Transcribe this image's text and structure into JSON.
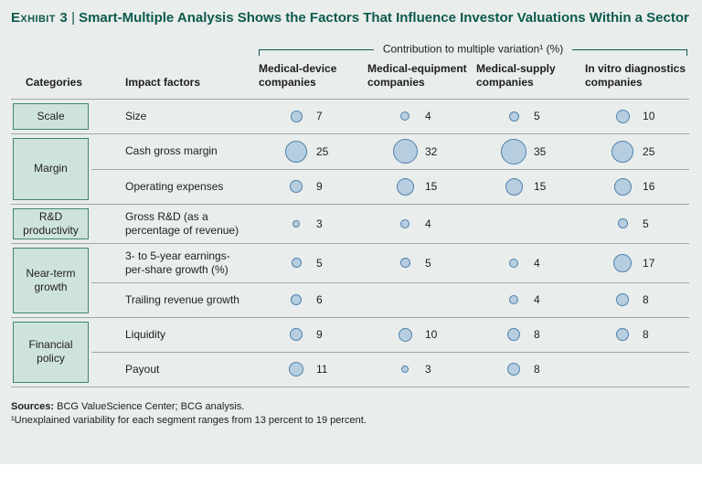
{
  "colors": {
    "background": "#e9edec",
    "title_green": "#0d5a4e",
    "category_fill": "#cfe3dd",
    "category_border": "#3f8375",
    "bubble_fill": "#b7cee1",
    "bubble_border": "#4f81ab",
    "line": "#9fa9a6"
  },
  "header": {
    "exhibit_label": "Exhibit 3",
    "divider": "|",
    "title_text": "Smart-Multiple Analysis Shows the Factors That Influence Investor Valuations Within a Sector"
  },
  "bracket": {
    "label": "Contribution to multiple variation¹ (%)"
  },
  "table": {
    "col_categories": "Categories",
    "col_impact_factors": "Impact factors",
    "company_columns": [
      "Medical-device companies",
      "Medical-equipment companies",
      "Medical-supply companies",
      "In vitro diagnostics companies"
    ]
  },
  "chart_data": {
    "type": "table",
    "title": "Exhibit 3 | Smart-Multiple Analysis Shows the Factors That Influence Investor Valuations Within a Sector",
    "unit_label": "Contribution to multiple variation¹ (%)",
    "columns": [
      "Medical-device companies",
      "Medical-equipment companies",
      "Medical-supply companies",
      "In vitro diagnostics companies"
    ],
    "groups": [
      {
        "category": "Scale",
        "rows": [
          {
            "factor": "Size",
            "values": [
              7,
              4,
              5,
              10
            ]
          }
        ]
      },
      {
        "category": "Margin",
        "rows": [
          {
            "factor": "Cash gross margin",
            "values": [
              25,
              32,
              35,
              25
            ]
          },
          {
            "factor": "Operating expenses",
            "values": [
              9,
              15,
              15,
              16
            ]
          }
        ]
      },
      {
        "category": "R&D productivity",
        "rows": [
          {
            "factor": "Gross R&D (as a percentage of revenue)",
            "values": [
              3,
              4,
              null,
              5
            ]
          }
        ]
      },
      {
        "category": "Near-term growth",
        "rows": [
          {
            "factor": "3- to 5-year earnings-per-share growth (%)",
            "values": [
              5,
              5,
              4,
              17
            ]
          },
          {
            "factor": "Trailing revenue growth",
            "values": [
              6,
              null,
              4,
              8
            ]
          }
        ]
      },
      {
        "category": "Financial policy",
        "rows": [
          {
            "factor": "Liquidity",
            "values": [
              9,
              10,
              8,
              8
            ]
          },
          {
            "factor": "Payout",
            "values": [
              11,
              3,
              8,
              null
            ]
          }
        ]
      }
    ]
  },
  "footer": {
    "sources_label": "Sources:",
    "sources_text": " BCG ValueScience Center; BCG analysis.",
    "footnote": "¹Unexplained variability for each segment ranges from 13 percent to 19 percent."
  }
}
